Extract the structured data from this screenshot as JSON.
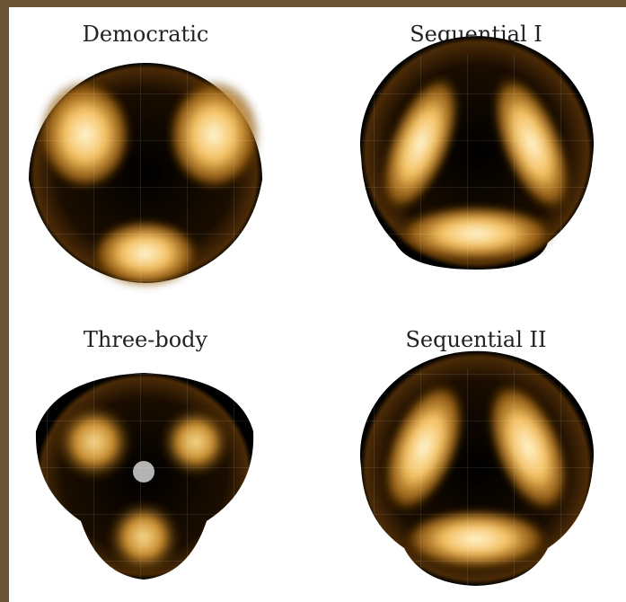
{
  "panels": [
    {
      "title": "Democratic"
    },
    {
      "title": "Sequential I"
    },
    {
      "title": "Three-body"
    },
    {
      "title": "Sequential II"
    }
  ]
}
